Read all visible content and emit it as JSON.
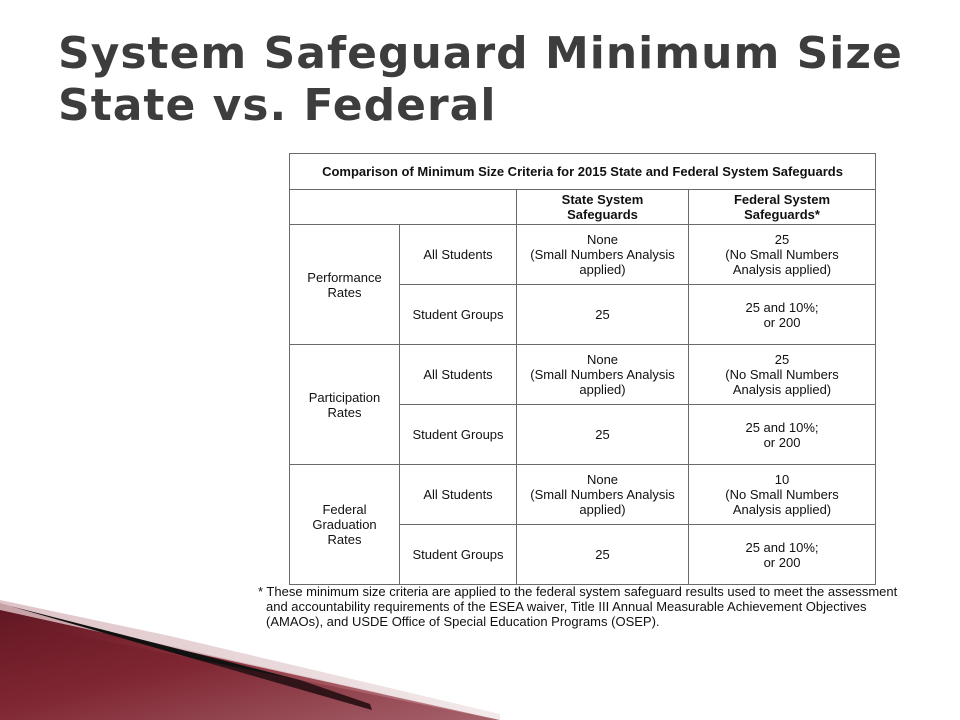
{
  "slide": {
    "title": {
      "line1": "System Safeguard Minimum Size",
      "line2": "State vs. Federal"
    }
  },
  "table": {
    "caption": "Comparison of Minimum Size Criteria for 2015 State and Federal System Safeguards",
    "headers": {
      "state": {
        "line1": "State System",
        "line2": "Safeguards"
      },
      "federal": {
        "line1": "Federal System",
        "line2": "Safeguards*"
      }
    },
    "sections": [
      {
        "label": [
          "Performance",
          "Rates"
        ],
        "rows": [
          {
            "group": "All Students",
            "state": [
              "None",
              "(Small Numbers Analysis",
              "applied)"
            ],
            "federal": [
              "25",
              "(No Small Numbers",
              "Analysis applied)"
            ]
          },
          {
            "group": "Student Groups",
            "state": [
              "25"
            ],
            "federal": [
              "25 and 10%;",
              "or 200"
            ]
          }
        ]
      },
      {
        "label": [
          "Participation",
          "Rates"
        ],
        "rows": [
          {
            "group": "All Students",
            "state": [
              "None",
              "(Small Numbers Analysis",
              "applied)"
            ],
            "federal": [
              "25",
              "(No Small Numbers",
              "Analysis applied)"
            ]
          },
          {
            "group": "Student Groups",
            "state": [
              "25"
            ],
            "federal": [
              "25 and 10%;",
              "or 200"
            ]
          }
        ]
      },
      {
        "label": [
          "Federal",
          "Graduation",
          "Rates"
        ],
        "rows": [
          {
            "group": "All Students",
            "state": [
              "None",
              "(Small Numbers Analysis",
              "applied)"
            ],
            "federal": [
              "10",
              "(No Small Numbers",
              "Analysis applied)"
            ]
          },
          {
            "group": "Student Groups",
            "state": [
              "25"
            ],
            "federal": [
              "25 and 10%;",
              "or 200"
            ]
          }
        ]
      }
    ]
  },
  "footnote": [
    "* These minimum size criteria are applied to the federal system safeguard results used to meet the assessment",
    "and accountability requirements of the ESEA waiver, Title III Annual Measurable Achievement Objectives",
    "(AMAOs), and USDE Office of Special Education Programs (OSEP)."
  ],
  "colors": {
    "title": "#3d3d3d",
    "table_border": "#6a6a6a",
    "accent_maroon": "#7a1f2b",
    "accent_light": "#c9a3a8"
  }
}
